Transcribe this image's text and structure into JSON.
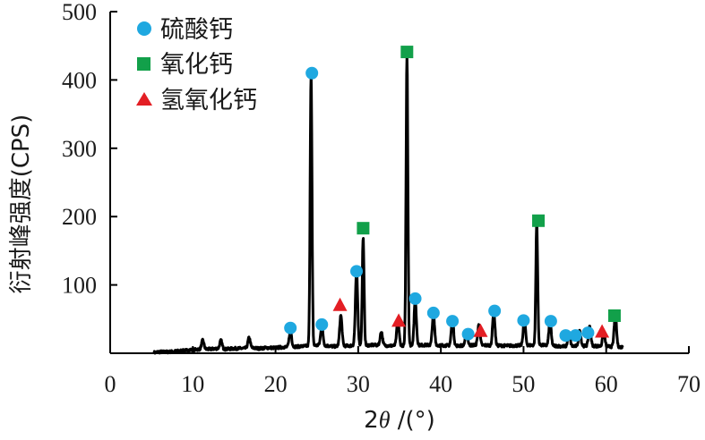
{
  "chart_data": {
    "type": "line",
    "xlabel_prefix": "2",
    "xlabel_theta": "θ",
    "xlabel_suffix": " /(°)",
    "ylabel": "衍射峰强度(CPS)",
    "xlim": [
      0,
      70
    ],
    "ylim": [
      0,
      500
    ],
    "x_ticks": [
      0,
      10,
      20,
      30,
      40,
      50,
      60,
      70
    ],
    "y_ticks": [
      100,
      200,
      300,
      400,
      500
    ],
    "grid": false,
    "legend_position": "top-left",
    "legend": [
      {
        "name": "硫酸钙",
        "marker": "circle",
        "color": "#1fa8e0"
      },
      {
        "name": "氧化钙",
        "marker": "square",
        "color": "#12a04a"
      },
      {
        "name": "氢氧化钙",
        "marker": "triangle",
        "color": "#e31e24"
      }
    ],
    "pattern_color": "#000000",
    "baseline": [
      [
        5.3,
        1
      ],
      [
        6,
        2
      ],
      [
        7,
        2
      ],
      [
        8,
        3
      ],
      [
        9,
        4
      ],
      [
        10,
        5
      ],
      [
        11,
        6
      ],
      [
        12,
        6
      ],
      [
        13,
        7
      ],
      [
        14,
        6
      ],
      [
        15,
        7
      ],
      [
        16,
        7
      ],
      [
        17,
        8
      ],
      [
        18,
        7
      ],
      [
        19,
        8
      ],
      [
        20,
        8
      ],
      [
        21,
        9
      ],
      [
        23,
        10
      ],
      [
        25.5,
        12
      ],
      [
        27,
        10
      ],
      [
        29,
        11
      ],
      [
        32,
        12
      ],
      [
        34,
        11
      ],
      [
        38,
        12
      ],
      [
        42,
        11
      ],
      [
        44,
        12
      ],
      [
        48,
        11
      ],
      [
        52,
        12
      ],
      [
        55,
        10
      ],
      [
        58,
        11
      ],
      [
        60,
        10
      ],
      [
        62,
        9
      ]
    ],
    "peaks": [
      {
        "x": 11.2,
        "y": 13
      },
      {
        "x": 13.4,
        "y": 12
      },
      {
        "x": 16.8,
        "y": 15
      },
      {
        "x": 21.8,
        "y": 25
      },
      {
        "x": 24.3,
        "y": 400
      },
      {
        "x": 25.6,
        "y": 28
      },
      {
        "x": 27.9,
        "y": 45
      },
      {
        "x": 29.8,
        "y": 108
      },
      {
        "x": 30.6,
        "y": 158
      },
      {
        "x": 32.8,
        "y": 20
      },
      {
        "x": 34.8,
        "y": 38
      },
      {
        "x": 35.9,
        "y": 425
      },
      {
        "x": 36.9,
        "y": 65
      },
      {
        "x": 39.1,
        "y": 45
      },
      {
        "x": 41.4,
        "y": 38
      },
      {
        "x": 43.1,
        "y": 20
      },
      {
        "x": 44.6,
        "y": 30
      },
      {
        "x": 46.4,
        "y": 50
      },
      {
        "x": 50.1,
        "y": 38
      },
      {
        "x": 51.6,
        "y": 180
      },
      {
        "x": 53.2,
        "y": 35
      },
      {
        "x": 55.5,
        "y": 20
      },
      {
        "x": 56.8,
        "y": 22
      },
      {
        "x": 58.0,
        "y": 28
      },
      {
        "x": 59.7,
        "y": 20
      },
      {
        "x": 61.1,
        "y": 48
      }
    ],
    "markers": [
      {
        "type": "circle",
        "x": 21.8,
        "y": 37
      },
      {
        "type": "circle",
        "x": 24.4,
        "y": 410
      },
      {
        "type": "circle",
        "x": 25.6,
        "y": 42
      },
      {
        "type": "circle",
        "x": 29.8,
        "y": 120
      },
      {
        "type": "circle",
        "x": 36.9,
        "y": 80
      },
      {
        "type": "circle",
        "x": 39.1,
        "y": 59
      },
      {
        "type": "circle",
        "x": 41.4,
        "y": 47
      },
      {
        "type": "circle",
        "x": 43.3,
        "y": 28
      },
      {
        "type": "circle",
        "x": 46.5,
        "y": 62
      },
      {
        "type": "circle",
        "x": 50.0,
        "y": 48
      },
      {
        "type": "circle",
        "x": 53.3,
        "y": 47
      },
      {
        "type": "circle",
        "x": 55.1,
        "y": 26
      },
      {
        "type": "circle",
        "x": 56.3,
        "y": 26
      },
      {
        "type": "circle",
        "x": 57.8,
        "y": 30
      },
      {
        "type": "square",
        "x": 30.6,
        "y": 183
      },
      {
        "type": "square",
        "x": 35.9,
        "y": 441
      },
      {
        "type": "square",
        "x": 51.8,
        "y": 194
      },
      {
        "type": "square",
        "x": 61.0,
        "y": 55
      },
      {
        "type": "triangle",
        "x": 27.8,
        "y": 71
      },
      {
        "type": "triangle",
        "x": 34.9,
        "y": 48
      },
      {
        "type": "triangle",
        "x": 44.8,
        "y": 33
      },
      {
        "type": "triangle",
        "x": 59.5,
        "y": 32
      }
    ]
  }
}
